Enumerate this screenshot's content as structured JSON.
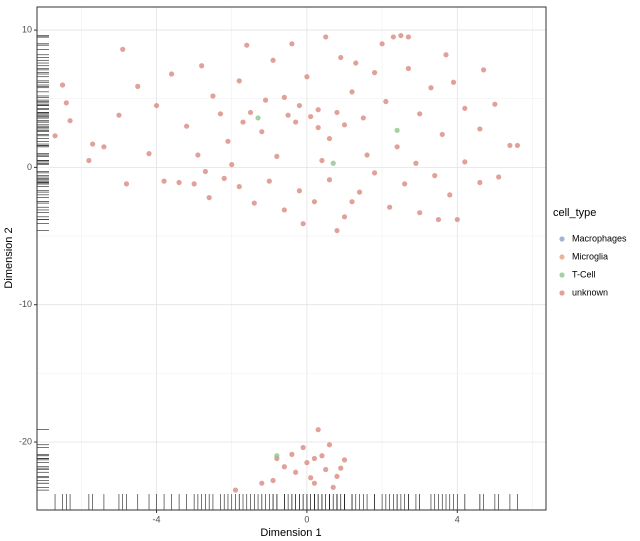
{
  "chart_data": {
    "type": "scatter",
    "x_label": "Dimension 1",
    "y_label": "Dimension 2",
    "xlim": [
      -7.18,
      6.36
    ],
    "ylim": [
      -24.95,
      11.68
    ],
    "xticks": [
      -4,
      0,
      4
    ],
    "yticks": [
      10,
      0,
      -10,
      -20
    ],
    "grid": true,
    "rug": true,
    "legend_title": "cell_type",
    "legend_position": "right",
    "series": [
      {
        "name": "Macrophages",
        "color": "#8da0cb",
        "x": [],
        "y": []
      },
      {
        "name": "Microglia",
        "color": "#e5a17e",
        "x": [],
        "y": []
      },
      {
        "name": "T-Cell",
        "color": "#8cc58c",
        "x": [
          -1.3,
          0.7,
          2.4,
          -0.8
        ],
        "y": [
          3.6,
          0.3,
          2.7,
          -21.0
        ]
      },
      {
        "name": "unknown",
        "color": "#d98a80",
        "x": [
          -4.9,
          -4.5,
          -4.0,
          -3.6,
          -3.2,
          -2.8,
          -2.5,
          -2.1,
          -1.8,
          -1.5,
          -1.2,
          -0.9,
          -0.6,
          -0.3,
          0.0,
          0.3,
          0.6,
          0.9,
          1.2,
          1.5,
          1.8,
          2.1,
          2.4,
          2.7,
          3.0,
          3.3,
          3.6,
          3.9,
          4.2,
          4.6,
          5.0,
          5.4,
          5.6,
          -5.0,
          -5.4,
          -4.2,
          -3.8,
          -3.4,
          -3.0,
          -2.6,
          -2.2,
          -1.8,
          -1.4,
          -1.0,
          -0.6,
          -0.2,
          0.2,
          0.6,
          1.0,
          1.4,
          1.8,
          2.2,
          2.6,
          3.0,
          3.4,
          3.8,
          4.2,
          4.6,
          5.1,
          -2.9,
          -2.3,
          -1.6,
          -0.4,
          0.5,
          1.3,
          2.0,
          2.5,
          2.7,
          2.3,
          3.7,
          4.7,
          -6.5,
          -6.7,
          -6.3,
          -5.8,
          -5.7,
          -6.4,
          -4.8,
          -2.0,
          -0.8,
          0.4,
          1.6,
          2.9,
          -1.1,
          -0.2,
          0.1,
          0.8,
          -0.5,
          0.3,
          1.0,
          -1.7,
          3.5,
          4.0,
          0.8,
          -0.1,
          1.2,
          -2.7,
          0.0,
          -0.3,
          0.4,
          0.8,
          -0.6,
          0.2,
          1.0,
          -0.9,
          0.6,
          0.3,
          -0.4,
          0.1,
          0.7,
          -1.2,
          0.9,
          -0.1,
          0.5,
          -1.9,
          -0.8,
          0.2
        ],
        "y": [
          8.6,
          5.9,
          4.5,
          6.8,
          3.0,
          7.4,
          5.2,
          1.9,
          6.3,
          4.0,
          2.6,
          7.8,
          5.1,
          3.3,
          6.6,
          4.2,
          2.1,
          8.0,
          5.5,
          3.6,
          6.9,
          4.8,
          1.5,
          7.2,
          3.9,
          5.8,
          2.4,
          6.2,
          4.3,
          2.8,
          4.6,
          1.6,
          1.6,
          3.8,
          1.5,
          1.0,
          -1.0,
          -1.1,
          -1.2,
          -2.2,
          -0.8,
          -1.4,
          -2.6,
          -1.0,
          -3.1,
          -1.7,
          -2.5,
          -0.9,
          -3.6,
          -1.8,
          -0.4,
          -2.9,
          -1.2,
          -3.3,
          -0.6,
          -2.0,
          0.4,
          -1.1,
          -0.7,
          0.9,
          3.9,
          8.9,
          9.0,
          9.5,
          7.6,
          9.0,
          9.6,
          9.5,
          9.5,
          8.2,
          7.1,
          6.0,
          2.3,
          3.4,
          0.5,
          1.7,
          4.7,
          -1.2,
          0.2,
          0.8,
          0.5,
          0.9,
          0.3,
          4.9,
          4.5,
          3.7,
          4.0,
          3.8,
          2.9,
          3.1,
          3.3,
          -3.8,
          -3.8,
          -4.6,
          -4.1,
          -2.5,
          -0.3,
          -21.5,
          -22.2,
          -21.0,
          -22.5,
          -21.8,
          -23.0,
          -21.3,
          -22.8,
          -20.2,
          -19.1,
          -20.9,
          -22.6,
          -23.3,
          -23.0,
          -21.9,
          -20.4,
          -22.0,
          -23.5,
          -21.2,
          -21.2
        ]
      }
    ]
  }
}
